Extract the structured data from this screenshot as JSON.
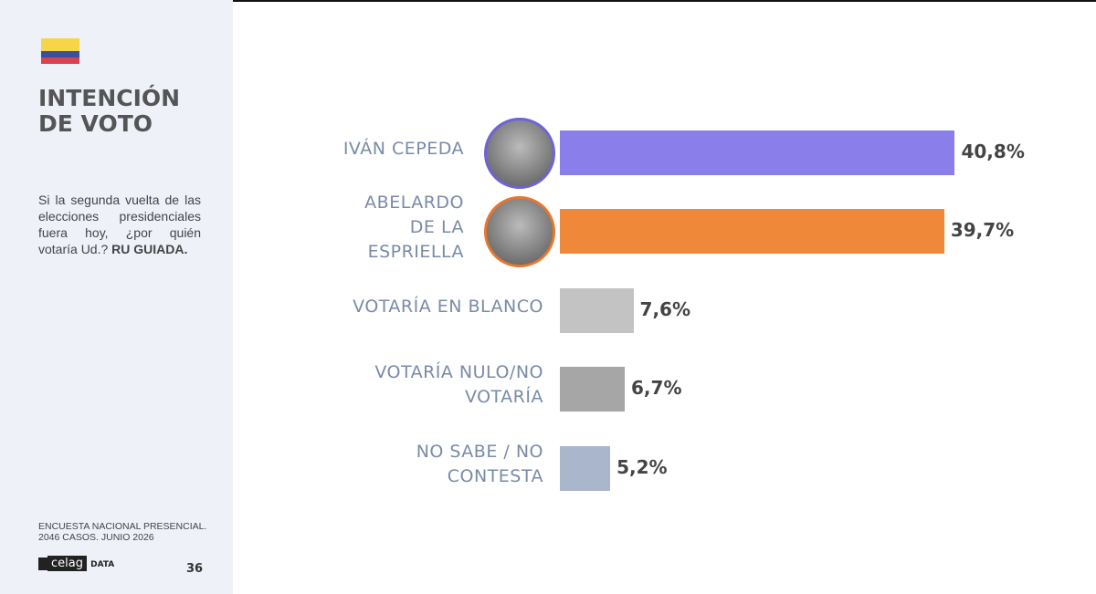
{
  "sidebar": {
    "title": "INTENCIÓN DE VOTO",
    "question": "Si la segunda vuelta de las elecciones presidenciales fuera hoy, ¿por quién votaría Ud.?",
    "question_emphasis": "RU GUIADA.",
    "source_line1": "ENCUESTA NACIONAL PRESENCIAL.",
    "source_line2": "2046 CASOS. JUNIO 2026",
    "logo": "celag",
    "logo_suffix": "DATA",
    "page_number": "36"
  },
  "chart_data": {
    "type": "bar",
    "orientation": "horizontal",
    "categories": [
      "IVÁN CEPEDA",
      "ABELARDO DE LA ESPRIELLA",
      "VOTARÍA EN BLANCO",
      "VOTARÍA NULO/NO VOTARÍA",
      "NO SABE / NO CONTESTA"
    ],
    "values": [
      40.8,
      39.7,
      7.6,
      6.7,
      5.2
    ],
    "value_labels": [
      "40,8%",
      "39,7%",
      "7,6%",
      "6,7%",
      "5,2%"
    ],
    "colors": [
      "#8a7eea",
      "#f0883a",
      "#c3c3c3",
      "#a6a6a6",
      "#aab6cc"
    ]
  }
}
